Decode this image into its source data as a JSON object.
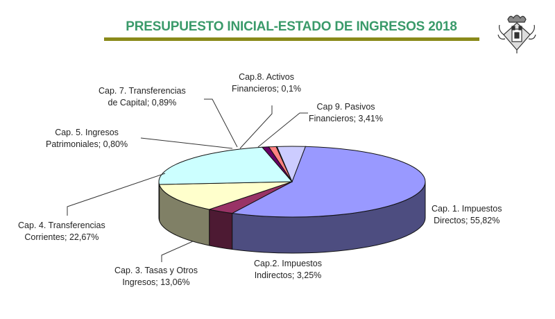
{
  "header": {
    "title": "PRESUPUESTO INICIAL-ESTADO DE INGRESOS 2018",
    "title_color": "#3a9a6a",
    "rule_color": "#8a8a1a",
    "crest_icon": "coat-of-arms-icon"
  },
  "chart_data": {
    "type": "pie",
    "title": "PRESUPUESTO INICIAL-ESTADO DE INGRESOS 2018",
    "style": "3d-pie",
    "unit": "%",
    "categories": [
      "Cap. 1. Impuestos Directos",
      "Cap.2. Impuestos Indirectos",
      "Cap. 3. Tasas y Otros Ingresos",
      "Cap. 4. Transferencias Corrientes",
      "Cap. 5. Ingresos Patrimoniales",
      "Cap. 7. Transferencias de Capital",
      "Cap.8. Activos Financieros",
      "Cap 9. Pasivos Financieros"
    ],
    "values": [
      55.82,
      3.25,
      13.06,
      22.67,
      0.8,
      0.89,
      0.1,
      3.41
    ],
    "colors": [
      "#9999ff",
      "#993366",
      "#ffffcc",
      "#ccffff",
      "#660066",
      "#ff8080",
      "#0066cc",
      "#ccccff"
    ],
    "side_colors": [
      "#4d4d80",
      "#4d1a33",
      "#808066",
      "#668080",
      "#330033",
      "#804040",
      "#003366",
      "#666680"
    ],
    "labels": [
      {
        "line1": "Cap. 1. Impuestos",
        "line2": "Directos; 55,82%"
      },
      {
        "line1": "Cap.2. Impuestos",
        "line2": "Indirectos; 3,25%"
      },
      {
        "line1": "Cap. 3. Tasas y Otros",
        "line2": "Ingresos; 13,06%"
      },
      {
        "line1": "Cap. 4. Transferencias",
        "line2": "Corrientes; 22,67%"
      },
      {
        "line1": "Cap. 5. Ingresos",
        "line2": "Patrimoniales; 0,80%"
      },
      {
        "line1": "Cap. 7.  Transferencias",
        "line2": "de Capital; 0,89%"
      },
      {
        "line1": "Cap.8. Activos",
        "line2": "Financieros; 0,1%"
      },
      {
        "line1": "Cap 9. Pasivos",
        "line2": "Financieros; 3,41%"
      }
    ],
    "legend": "none",
    "data_labels": "category; percentage"
  }
}
